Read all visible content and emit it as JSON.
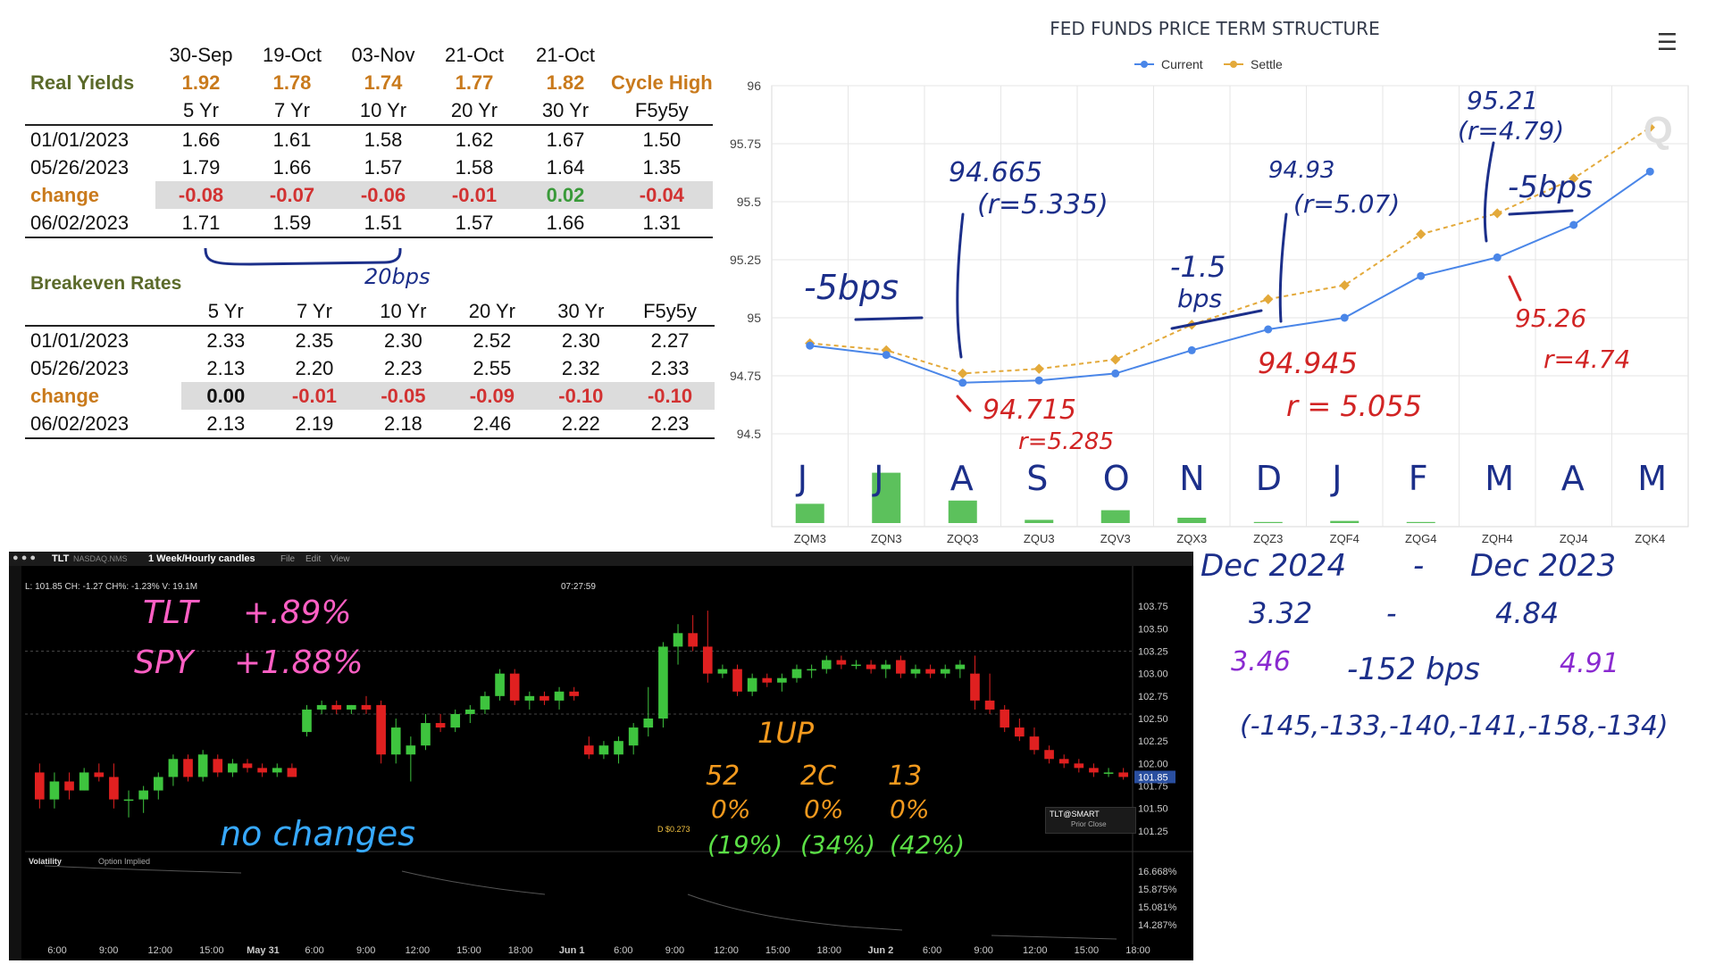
{
  "real_yields": {
    "title": "Real Yields",
    "date_headers": [
      "30-Sep",
      "19-Oct",
      "03-Nov",
      "21-Oct",
      "21-Oct"
    ],
    "cycle_high_label": "Cycle High",
    "cycle_highs": [
      "1.92",
      "1.78",
      "1.74",
      "1.77",
      "1.82"
    ],
    "tenors": [
      "5 Yr",
      "7 Yr",
      "10 Yr",
      "20 Yr",
      "30 Yr",
      "F5y5y"
    ],
    "rows": [
      {
        "label": "01/01/2023",
        "values": [
          "1.66",
          "1.61",
          "1.58",
          "1.62",
          "1.67",
          "1.50"
        ]
      },
      {
        "label": "05/26/2023",
        "values": [
          "1.79",
          "1.66",
          "1.57",
          "1.58",
          "1.64",
          "1.35"
        ]
      },
      {
        "label": "change",
        "values": [
          "-0.08",
          "-0.07",
          "-0.06",
          "-0.01",
          "0.02",
          "-0.04"
        ]
      },
      {
        "label": "06/02/2023",
        "values": [
          "1.71",
          "1.59",
          "1.51",
          "1.57",
          "1.66",
          "1.31"
        ]
      }
    ]
  },
  "breakeven": {
    "title": "Breakeven Rates",
    "tenors": [
      "5 Yr",
      "7 Yr",
      "10 Yr",
      "20 Yr",
      "30 Yr",
      "F5y5y"
    ],
    "rows": [
      {
        "label": "01/01/2023",
        "values": [
          "2.33",
          "2.35",
          "2.30",
          "2.52",
          "2.30",
          "2.27"
        ]
      },
      {
        "label": "05/26/2023",
        "values": [
          "2.13",
          "2.20",
          "2.23",
          "2.55",
          "2.32",
          "2.33"
        ]
      },
      {
        "label": "change",
        "values": [
          "0.00",
          "-0.01",
          "-0.05",
          "-0.09",
          "-0.10",
          "-0.10"
        ]
      },
      {
        "label": "06/02/2023",
        "values": [
          "2.13",
          "2.19",
          "2.18",
          "2.46",
          "2.22",
          "2.23"
        ]
      }
    ]
  },
  "fed_chart": {
    "title": "FED FUNDS PRICE TERM STRUCTURE",
    "menu_icon": "hamburger-menu-icon",
    "watermark": "Q"
  },
  "tlt_panel": {
    "symbol": "TLT",
    "exchange": "NASDAQ.NMS",
    "timeframe": "1 Week/Hourly candles",
    "menus": [
      "File",
      "Edit",
      "View"
    ],
    "ohlc_readout": "L: 101.85 CH: -1.27 CH%: -1.23% V: 19.1M",
    "crosshair_time": "07:27:59",
    "dividend_marker": "D $0.273",
    "overlay_title": "TLT@SMART",
    "overlay_sub": "Prior Close",
    "volatility_label": "Volatility",
    "volatility_option": "Option Implied",
    "time_labels": [
      "6:00",
      "9:00",
      "12:00",
      "15:00",
      "May 31",
      "6:00",
      "9:00",
      "12:00",
      "15:00",
      "18:00",
      "Jun 1",
      "6:00",
      "9:00",
      "12:00",
      "15:00",
      "18:00",
      "Jun 2",
      "6:00",
      "9:00",
      "12:00",
      "15:00",
      "18:00"
    ],
    "price_ticks": [
      "103.75",
      "103.50",
      "103.25",
      "103.00",
      "102.75",
      "102.50",
      "102.25",
      "102.00",
      "101.75",
      "101.50",
      "101.25"
    ],
    "price_current": "101.85",
    "vol_ticks": [
      "16.668%",
      "15.875%",
      "15.081%",
      "14.287%"
    ]
  },
  "annotations": {
    "yields_bracket": "20bps",
    "fed_notes": [
      "-5bps",
      "94.665",
      "(r=5.335)",
      "94.715",
      "r=5.285",
      "-1.5",
      "bps",
      "94.93",
      "(r=5.07)",
      "94.945",
      "r = 5.055",
      "95.21",
      "(r=4.79)",
      "-5bps",
      "95.26",
      "r=4.74"
    ],
    "month_letters": [
      "J",
      "J",
      "A",
      "S",
      "O",
      "N",
      "D",
      "J",
      "F",
      "M",
      "A",
      "M"
    ],
    "tlt_notes": [
      "TLT",
      "+.89%",
      "SPY",
      "+1.88%",
      "no changes",
      "1UP",
      "52",
      "2C",
      "13",
      "0%",
      "0%",
      "0%",
      "(19%)",
      "(34%)",
      "(42%)"
    ],
    "right_notes": [
      "Dec 2024",
      "-",
      "Dec 2023",
      "3.32",
      "-",
      "4.84",
      "3.46",
      "-152 bps",
      "4.91",
      "(-145,-133,-140,-141,-158,-134)"
    ]
  },
  "chart_data": [
    {
      "type": "line",
      "title": "FED FUNDS PRICE TERM STRUCTURE",
      "categories": [
        "ZQM3",
        "ZQN3",
        "ZQQ3",
        "ZQU3",
        "ZQV3",
        "ZQX3",
        "ZQZ3",
        "ZQF4",
        "ZQG4",
        "ZQH4",
        "ZQJ4",
        "ZQK4"
      ],
      "ylim": [
        94.5,
        96
      ],
      "yticks": [
        "96",
        "95.75",
        "95.5",
        "95.25",
        "95",
        "94.75",
        "94.5"
      ],
      "legend_position": "top",
      "grid": true,
      "series": [
        {
          "name": "Current",
          "color": "#4a86e8",
          "values": [
            94.88,
            94.84,
            94.72,
            94.73,
            94.76,
            94.86,
            94.95,
            95.0,
            95.18,
            95.26,
            95.4,
            95.63
          ]
        },
        {
          "name": "Settle",
          "color": "#e3a93a",
          "values": [
            94.89,
            94.86,
            94.76,
            94.78,
            94.82,
            94.97,
            95.08,
            95.14,
            95.36,
            95.45,
            95.6,
            95.82
          ]
        }
      ],
      "volume": [
        0.9,
        2.35,
        1.05,
        0.15,
        0.6,
        0.25,
        0.05,
        0.1,
        0.05,
        0.0,
        0.0,
        0.0
      ]
    },
    {
      "type": "candlestick",
      "title": "TLT",
      "ylim": [
        101.1,
        103.9
      ],
      "candles": [
        {
          "o": 101.9,
          "h": 102.0,
          "l": 101.5,
          "c": 101.6
        },
        {
          "o": 101.6,
          "h": 101.9,
          "l": 101.5,
          "c": 101.8
        },
        {
          "o": 101.8,
          "h": 101.9,
          "l": 101.6,
          "c": 101.7
        },
        {
          "o": 101.7,
          "h": 101.95,
          "l": 101.7,
          "c": 101.9
        },
        {
          "o": 101.9,
          "h": 102.0,
          "l": 101.8,
          "c": 101.85
        },
        {
          "o": 101.85,
          "h": 102.0,
          "l": 101.5,
          "c": 101.6
        },
        {
          "o": 101.6,
          "h": 101.7,
          "l": 101.4,
          "c": 101.6
        },
        {
          "o": 101.6,
          "h": 101.75,
          "l": 101.45,
          "c": 101.7
        },
        {
          "o": 101.7,
          "h": 101.9,
          "l": 101.6,
          "c": 101.85
        },
        {
          "o": 101.85,
          "h": 102.1,
          "l": 101.75,
          "c": 102.05
        },
        {
          "o": 102.05,
          "h": 102.1,
          "l": 101.8,
          "c": 101.85
        },
        {
          "o": 101.85,
          "h": 102.15,
          "l": 101.8,
          "c": 102.1
        },
        {
          "o": 102.05,
          "h": 102.1,
          "l": 101.85,
          "c": 101.9
        },
        {
          "o": 101.9,
          "h": 102.05,
          "l": 101.85,
          "c": 102.0
        },
        {
          "o": 102.0,
          "h": 102.05,
          "l": 101.9,
          "c": 101.95
        },
        {
          "o": 101.95,
          "h": 102.0,
          "l": 101.85,
          "c": 101.9
        },
        {
          "o": 101.9,
          "h": 102.0,
          "l": 101.85,
          "c": 101.95
        },
        {
          "o": 101.95,
          "h": 102.0,
          "l": 101.85,
          "c": 101.85
        },
        {
          "o": 102.35,
          "h": 102.65,
          "l": 102.3,
          "c": 102.6
        },
        {
          "o": 102.6,
          "h": 102.7,
          "l": 102.55,
          "c": 102.65
        },
        {
          "o": 102.65,
          "h": 102.7,
          "l": 102.55,
          "c": 102.6
        },
        {
          "o": 102.6,
          "h": 102.65,
          "l": 102.55,
          "c": 102.65
        },
        {
          "o": 102.65,
          "h": 102.75,
          "l": 102.55,
          "c": 102.6
        },
        {
          "o": 102.65,
          "h": 102.7,
          "l": 102.0,
          "c": 102.1
        },
        {
          "o": 102.1,
          "h": 102.5,
          "l": 102.0,
          "c": 102.4
        },
        {
          "o": 102.1,
          "h": 102.3,
          "l": 101.8,
          "c": 102.2
        },
        {
          "o": 102.2,
          "h": 102.55,
          "l": 102.15,
          "c": 102.45
        },
        {
          "o": 102.45,
          "h": 102.55,
          "l": 102.35,
          "c": 102.4
        },
        {
          "o": 102.4,
          "h": 102.6,
          "l": 102.35,
          "c": 102.55
        },
        {
          "o": 102.55,
          "h": 102.65,
          "l": 102.45,
          "c": 102.6
        },
        {
          "o": 102.6,
          "h": 102.8,
          "l": 102.55,
          "c": 102.75
        },
        {
          "o": 102.75,
          "h": 103.05,
          "l": 102.7,
          "c": 103.0
        },
        {
          "o": 103.0,
          "h": 103.05,
          "l": 102.65,
          "c": 102.7
        },
        {
          "o": 102.7,
          "h": 102.8,
          "l": 102.6,
          "c": 102.75
        },
        {
          "o": 102.75,
          "h": 102.8,
          "l": 102.65,
          "c": 102.7
        },
        {
          "o": 102.7,
          "h": 102.85,
          "l": 102.6,
          "c": 102.8
        },
        {
          "o": 102.8,
          "h": 102.85,
          "l": 102.7,
          "c": 102.75
        },
        {
          "o": 102.2,
          "h": 102.3,
          "l": 102.05,
          "c": 102.1
        },
        {
          "o": 102.1,
          "h": 102.25,
          "l": 102.05,
          "c": 102.2
        },
        {
          "o": 102.1,
          "h": 102.3,
          "l": 102.0,
          "c": 102.25
        },
        {
          "o": 102.2,
          "h": 102.45,
          "l": 102.1,
          "c": 102.4
        },
        {
          "o": 102.4,
          "h": 102.85,
          "l": 102.3,
          "c": 102.5
        },
        {
          "o": 102.5,
          "h": 103.35,
          "l": 102.4,
          "c": 103.3
        },
        {
          "o": 103.3,
          "h": 103.55,
          "l": 103.1,
          "c": 103.45
        },
        {
          "o": 103.45,
          "h": 103.65,
          "l": 103.25,
          "c": 103.3
        },
        {
          "o": 103.3,
          "h": 103.7,
          "l": 102.9,
          "c": 103.0
        },
        {
          "o": 103.0,
          "h": 103.1,
          "l": 102.95,
          "c": 103.05
        },
        {
          "o": 103.05,
          "h": 103.1,
          "l": 102.75,
          "c": 102.8
        },
        {
          "o": 102.8,
          "h": 103.0,
          "l": 102.75,
          "c": 102.95
        },
        {
          "o": 102.95,
          "h": 103.0,
          "l": 102.85,
          "c": 102.9
        },
        {
          "o": 102.9,
          "h": 103.0,
          "l": 102.8,
          "c": 102.95
        },
        {
          "o": 102.95,
          "h": 103.1,
          "l": 102.9,
          "c": 103.05
        },
        {
          "o": 103.05,
          "h": 103.1,
          "l": 102.95,
          "c": 103.05
        },
        {
          "o": 103.05,
          "h": 103.2,
          "l": 103.0,
          "c": 103.15
        },
        {
          "o": 103.15,
          "h": 103.2,
          "l": 103.05,
          "c": 103.1
        },
        {
          "o": 103.1,
          "h": 103.15,
          "l": 103.05,
          "c": 103.1
        },
        {
          "o": 103.1,
          "h": 103.15,
          "l": 103.0,
          "c": 103.05
        },
        {
          "o": 103.05,
          "h": 103.15,
          "l": 102.95,
          "c": 103.1
        },
        {
          "o": 103.15,
          "h": 103.2,
          "l": 102.95,
          "c": 103.0
        },
        {
          "o": 103.0,
          "h": 103.1,
          "l": 102.95,
          "c": 103.05
        },
        {
          "o": 103.05,
          "h": 103.1,
          "l": 102.95,
          "c": 103.0
        },
        {
          "o": 103.0,
          "h": 103.1,
          "l": 102.95,
          "c": 103.05
        },
        {
          "o": 103.05,
          "h": 103.15,
          "l": 102.95,
          "c": 103.1
        },
        {
          "o": 103.0,
          "h": 103.2,
          "l": 102.6,
          "c": 102.7
        },
        {
          "o": 102.7,
          "h": 103.0,
          "l": 102.55,
          "c": 102.6
        },
        {
          "o": 102.6,
          "h": 102.65,
          "l": 102.35,
          "c": 102.4
        },
        {
          "o": 102.4,
          "h": 102.5,
          "l": 102.25,
          "c": 102.3
        },
        {
          "o": 102.3,
          "h": 102.4,
          "l": 102.1,
          "c": 102.15
        },
        {
          "o": 102.15,
          "h": 102.2,
          "l": 102.0,
          "c": 102.05
        },
        {
          "o": 102.05,
          "h": 102.1,
          "l": 101.95,
          "c": 102.0
        },
        {
          "o": 102.0,
          "h": 102.05,
          "l": 101.9,
          "c": 101.95
        },
        {
          "o": 101.95,
          "h": 102.0,
          "l": 101.85,
          "c": 101.9
        },
        {
          "o": 101.9,
          "h": 101.95,
          "l": 101.85,
          "c": 101.9
        },
        {
          "o": 101.9,
          "h": 101.95,
          "l": 101.82,
          "c": 101.85
        }
      ]
    }
  ]
}
